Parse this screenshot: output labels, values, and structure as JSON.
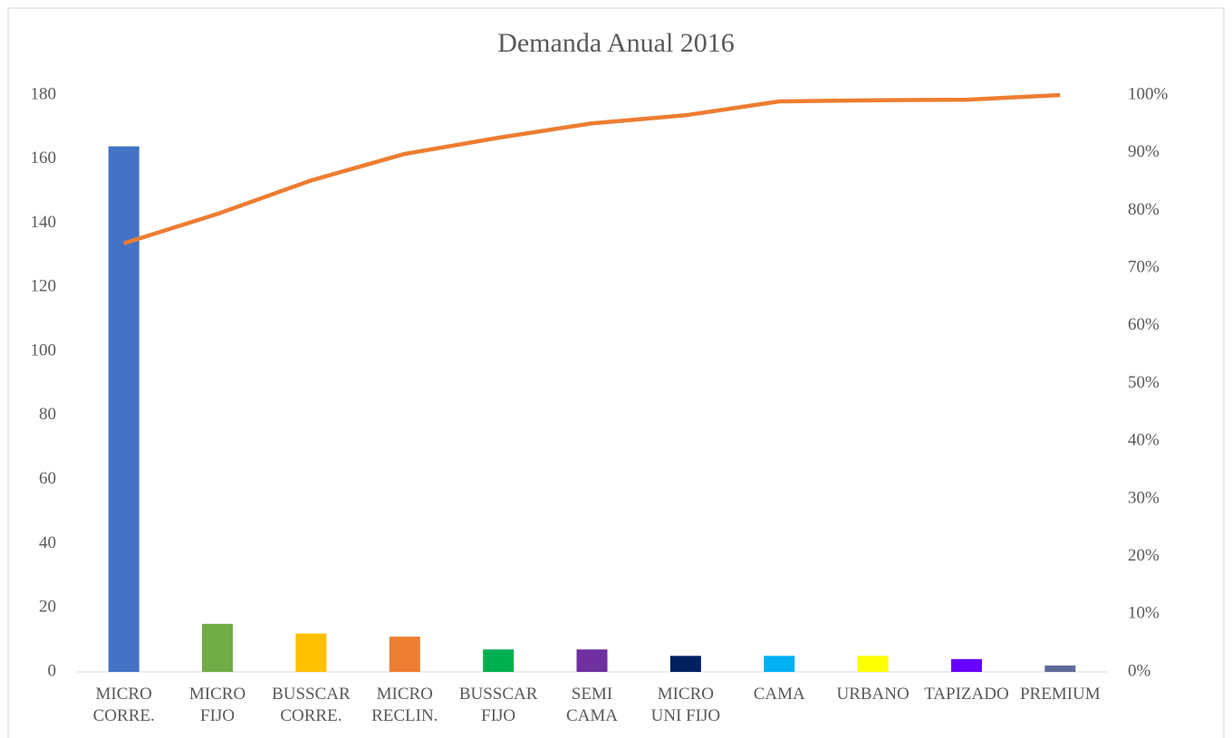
{
  "chart_data": {
    "type": "bar",
    "title": "Demanda Anual 2016",
    "categories": [
      "MICRO\nCORRE.",
      "MICRO\nFIJO",
      "BUSSCAR\nCORRE.",
      "MICRO\nRECLIN.",
      "BUSSCAR\nFIJO",
      "SEMI\nCAMA",
      "MICRO\nUNI FIJO",
      "CAMA",
      "URBANO",
      "TAPIZADO",
      "PREMIUM"
    ],
    "series": [
      {
        "type": "bar",
        "colors": [
          "#4472c4",
          "#70ad47",
          "#ffc000",
          "#ed7d31",
          "#00b050",
          "#7030a0",
          "#002060",
          "#00b0f0",
          "#ffff00",
          "#6600ff",
          "#5f6b96"
        ],
        "values": [
          164,
          15,
          12,
          11,
          7,
          7,
          5,
          5,
          5,
          4,
          2
        ]
      },
      {
        "type": "line",
        "axis": "y2",
        "color": "#ed7d31",
        "values": [
          74.3,
          79.4,
          85.2,
          89.8,
          92.6,
          95.1,
          96.5,
          98.9,
          99.1,
          99.2,
          100
        ]
      }
    ],
    "ylim": [
      0,
      180
    ],
    "yticks": [
      0,
      20,
      40,
      60,
      80,
      100,
      120,
      140,
      160,
      180
    ],
    "y2lim": [
      0,
      100
    ],
    "y2ticks": [
      {
        "value": 0,
        "label": "0%"
      },
      {
        "value": 10,
        "label": "10%"
      },
      {
        "value": 20,
        "label": "20%"
      },
      {
        "value": 30,
        "label": "30%"
      },
      {
        "value": 40,
        "label": "40%"
      },
      {
        "value": 50,
        "label": "50%"
      },
      {
        "value": 60,
        "label": "60%"
      },
      {
        "value": 70,
        "label": "70%"
      },
      {
        "value": 80,
        "label": "80%"
      },
      {
        "value": 90,
        "label": "90%"
      },
      {
        "value": 100,
        "label": "100%"
      }
    ],
    "grid": false
  }
}
